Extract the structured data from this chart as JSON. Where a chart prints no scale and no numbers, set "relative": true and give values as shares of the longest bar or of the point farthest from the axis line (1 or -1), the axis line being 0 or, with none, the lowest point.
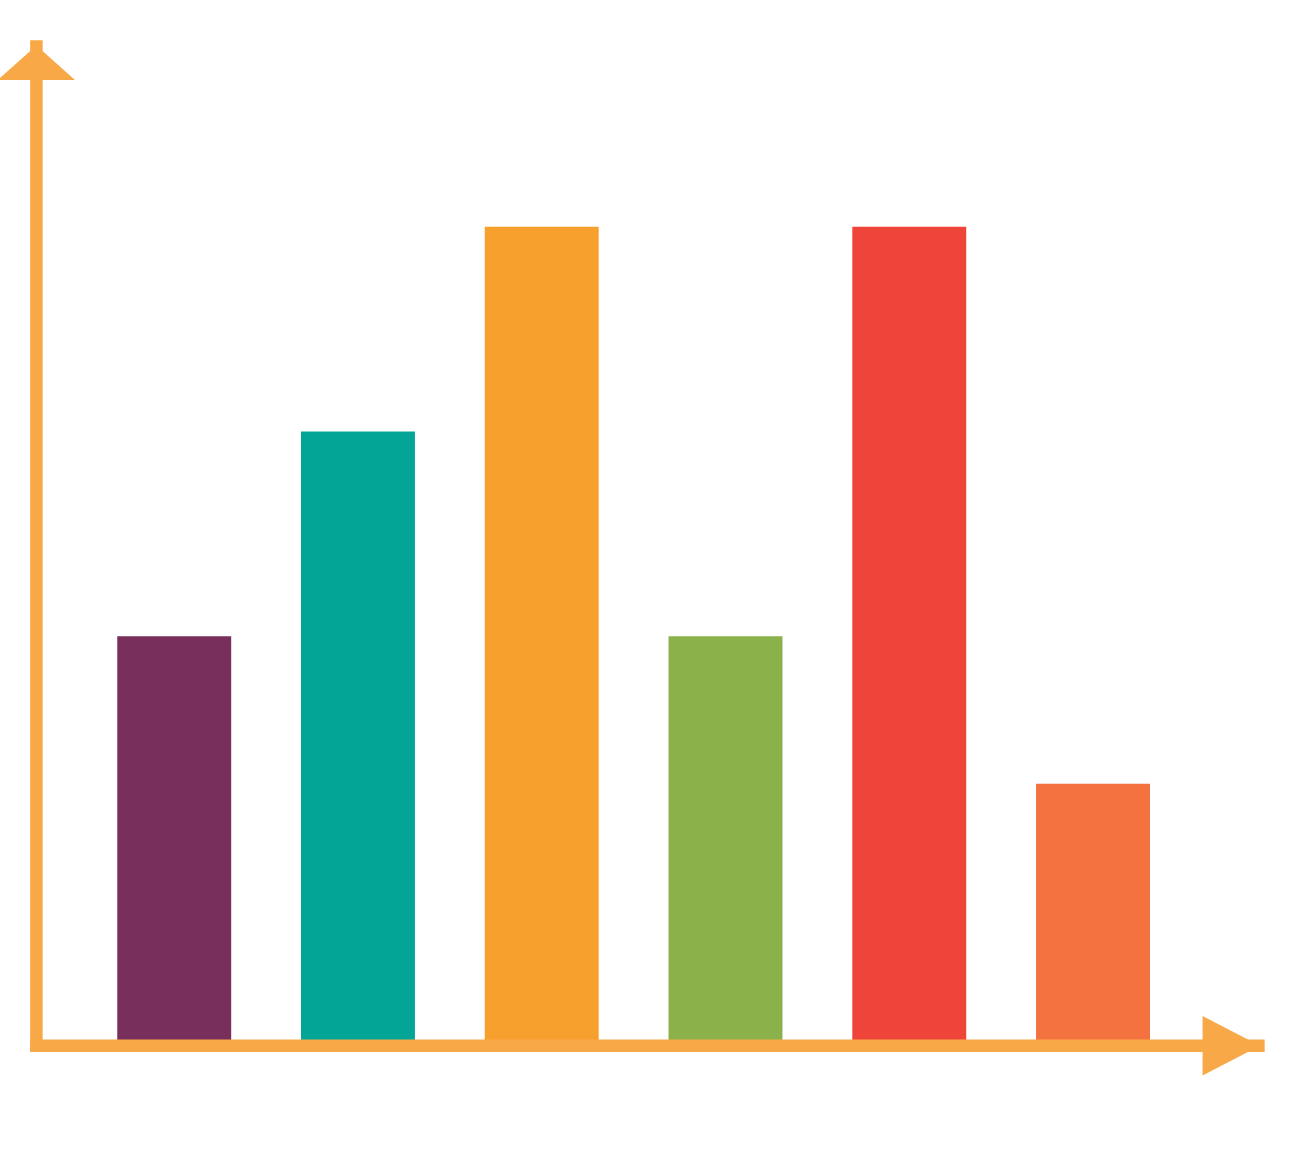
{
  "chart_data": {
    "type": "bar",
    "relative": true,
    "categories": [
      null,
      null,
      null,
      null,
      null,
      null
    ],
    "values": [
      0.5,
      0.75,
      1.0,
      0.5,
      1.0,
      0.32
    ],
    "colors": [
      "#792f5b",
      "#03a597",
      "#f8a02e",
      "#8bb14b",
      "#ef4439",
      "#f37240"
    ],
    "grid": false,
    "legend": false
  }
}
